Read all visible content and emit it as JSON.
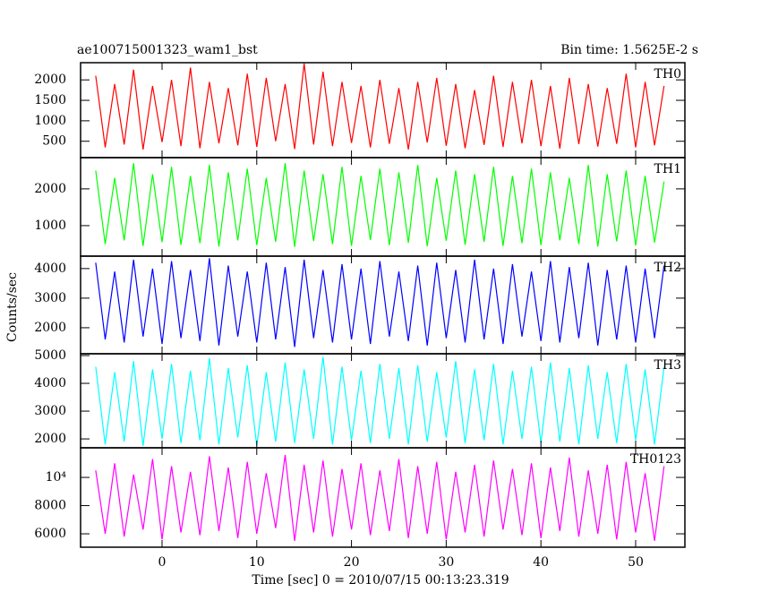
{
  "title": "ae100715001323_wam1_bst",
  "bin_time": "Bin time: 1.5625E-2 s",
  "ylabel": "Counts/sec",
  "xlabel": "Time [sec] 0 = 2010/07/15 00:13:23.319",
  "chart_data": [
    {
      "type": "line",
      "label": "TH0",
      "color": "#ff0000",
      "xlim": [
        -8.6,
        55.2
      ],
      "xticks": [
        0,
        10,
        20,
        30,
        40,
        50
      ],
      "ylim": [
        100,
        2420
      ],
      "yticks": [
        500,
        1000,
        1500,
        2000
      ],
      "x": [
        -7,
        -6,
        -5,
        -4,
        -3,
        -2,
        -1,
        0,
        1,
        2,
        3,
        4,
        5,
        6,
        7,
        8,
        9,
        10,
        11,
        12,
        13,
        14,
        15,
        16,
        17,
        18,
        19,
        20,
        21,
        22,
        23,
        24,
        25,
        26,
        27,
        28,
        29,
        30,
        31,
        32,
        33,
        34,
        35,
        36,
        37,
        38,
        39,
        40,
        41,
        42,
        43,
        44,
        45,
        46,
        47,
        48,
        49,
        50,
        51,
        52,
        53
      ],
      "values": [
        2100,
        350,
        1900,
        420,
        2250,
        300,
        1850,
        480,
        2000,
        380,
        2300,
        330,
        1950,
        450,
        1800,
        400,
        2150,
        360,
        2050,
        500,
        1900,
        310,
        2400,
        420,
        2200,
        380,
        1950,
        460,
        1850,
        350,
        2000,
        440,
        1800,
        300,
        1950,
        470,
        2050,
        390,
        1900,
        330,
        1750,
        410,
        2100,
        360,
        1950,
        450,
        2000,
        380,
        1850,
        320,
        2050,
        430,
        1900,
        370,
        1800,
        440,
        2150,
        350,
        1950,
        400,
        1850
      ]
    },
    {
      "type": "line",
      "label": "TH1",
      "color": "#00ff00",
      "xlim": [
        -8.6,
        55.2
      ],
      "xticks": [
        0,
        10,
        20,
        30,
        40,
        50
      ],
      "ylim": [
        170,
        2850
      ],
      "yticks": [
        1000,
        2000
      ],
      "x": [
        -7,
        -6,
        -5,
        -4,
        -3,
        -2,
        -1,
        0,
        1,
        2,
        3,
        4,
        5,
        6,
        7,
        8,
        9,
        10,
        11,
        12,
        13,
        14,
        15,
        16,
        17,
        18,
        19,
        20,
        21,
        22,
        23,
        24,
        25,
        26,
        27,
        28,
        29,
        30,
        31,
        32,
        33,
        34,
        35,
        36,
        37,
        38,
        39,
        40,
        41,
        42,
        43,
        44,
        45,
        46,
        47,
        48,
        49,
        50,
        51,
        52,
        53
      ],
      "values": [
        2500,
        500,
        2300,
        600,
        2700,
        450,
        2400,
        550,
        2600,
        480,
        2350,
        520,
        2650,
        430,
        2450,
        600,
        2550,
        470,
        2300,
        560,
        2700,
        420,
        2500,
        580,
        2400,
        500,
        2600,
        450,
        2350,
        610,
        2550,
        470,
        2450,
        530,
        2650,
        440,
        2300,
        590,
        2500,
        480,
        2400,
        560,
        2600,
        450,
        2350,
        520,
        2550,
        470,
        2450,
        600,
        2300,
        500,
        2650,
        430,
        2400,
        570,
        2500,
        460,
        2350,
        540,
        2200
      ]
    },
    {
      "type": "line",
      "label": "TH2",
      "color": "#0000ff",
      "xlim": [
        -8.6,
        55.2
      ],
      "xticks": [
        0,
        10,
        20,
        30,
        40,
        50
      ],
      "ylim": [
        1120,
        4420
      ],
      "yticks": [
        2000,
        3000,
        4000
      ],
      "x": [
        -7,
        -6,
        -5,
        -4,
        -3,
        -2,
        -1,
        0,
        1,
        2,
        3,
        4,
        5,
        6,
        7,
        8,
        9,
        10,
        11,
        12,
        13,
        14,
        15,
        16,
        17,
        18,
        19,
        20,
        21,
        22,
        23,
        24,
        25,
        26,
        27,
        28,
        29,
        30,
        31,
        32,
        33,
        34,
        35,
        36,
        37,
        38,
        39,
        40,
        41,
        42,
        43,
        44,
        45,
        46,
        47,
        48,
        49,
        50,
        51,
        52,
        53
      ],
      "values": [
        4200,
        1600,
        3900,
        1500,
        4300,
        1700,
        4000,
        1450,
        4250,
        1650,
        3950,
        1550,
        4350,
        1400,
        4100,
        1700,
        3900,
        1500,
        4200,
        1600,
        4050,
        1350,
        4300,
        1650,
        3950,
        1500,
        4150,
        1600,
        4000,
        1450,
        4250,
        1700,
        3900,
        1550,
        4100,
        1400,
        4200,
        1650,
        3950,
        1500,
        4300,
        1600,
        4000,
        1450,
        4150,
        1700,
        3900,
        1550,
        4250,
        1500,
        4050,
        1650,
        4200,
        1400,
        3950,
        1600,
        4100,
        1500,
        4000,
        1650,
        4100
      ]
    },
    {
      "type": "line",
      "label": "TH3",
      "color": "#00ffff",
      "xlim": [
        -8.6,
        55.2
      ],
      "xticks": [
        0,
        10,
        20,
        30,
        40,
        50
      ],
      "ylim": [
        1680,
        5065
      ],
      "yticks": [
        2000,
        3000,
        4000,
        5000
      ],
      "x": [
        -7,
        -6,
        -5,
        -4,
        -3,
        -2,
        -1,
        0,
        1,
        2,
        3,
        4,
        5,
        6,
        7,
        8,
        9,
        10,
        11,
        12,
        13,
        14,
        15,
        16,
        17,
        18,
        19,
        20,
        21,
        22,
        23,
        24,
        25,
        26,
        27,
        28,
        29,
        30,
        31,
        32,
        33,
        34,
        35,
        36,
        37,
        38,
        39,
        40,
        41,
        42,
        43,
        44,
        45,
        46,
        47,
        48,
        49,
        50,
        51,
        52,
        53
      ],
      "values": [
        4600,
        1800,
        4400,
        1900,
        4800,
        1750,
        4500,
        2000,
        4700,
        1850,
        4450,
        1950,
        4900,
        1800,
        4550,
        2050,
        4650,
        1750,
        4400,
        1900,
        4750,
        1850,
        4500,
        2000,
        4950,
        1800,
        4600,
        1950,
        4450,
        1850,
        4700,
        2000,
        4550,
        1800,
        4650,
        1900,
        4400,
        2050,
        4800,
        1850,
        4500,
        1950,
        4700,
        1800,
        4450,
        2000,
        4600,
        1850,
        4750,
        1900,
        4550,
        1800,
        4650,
        2000,
        4400,
        1850,
        4700,
        1950,
        4500,
        1800,
        4600
      ]
    },
    {
      "type": "line",
      "label": "TH0123",
      "color": "#ff00ff",
      "xlim": [
        -8.6,
        55.2
      ],
      "xticks": [
        0,
        10,
        20,
        30,
        40,
        50
      ],
      "ylim": [
        5050,
        12100
      ],
      "yticks": [
        6000,
        8000,
        {
          "value": 10000,
          "label": "10⁴"
        }
      ],
      "x": [
        -7,
        -6,
        -5,
        -4,
        -3,
        -2,
        -1,
        0,
        1,
        2,
        3,
        4,
        5,
        6,
        7,
        8,
        9,
        10,
        11,
        12,
        13,
        14,
        15,
        16,
        17,
        18,
        19,
        20,
        21,
        22,
        23,
        24,
        25,
        26,
        27,
        28,
        29,
        30,
        31,
        32,
        33,
        34,
        35,
        36,
        37,
        38,
        39,
        40,
        41,
        42,
        43,
        44,
        45,
        46,
        47,
        48,
        49,
        50,
        51,
        52,
        53
      ],
      "values": [
        10500,
        6000,
        11000,
        5800,
        10200,
        6300,
        11300,
        5600,
        10800,
        6100,
        10400,
        5900,
        11500,
        6200,
        10700,
        5700,
        11100,
        6000,
        10300,
        6400,
        11600,
        5500,
        10900,
        6100,
        11200,
        5800,
        10600,
        6300,
        11000,
        5900,
        10500,
        6200,
        11300,
        5700,
        10800,
        6000,
        11100,
        5600,
        10400,
        6100,
        10900,
        5800,
        11200,
        6300,
        10600,
        5900,
        11000,
        5700,
        10700,
        6200,
        11400,
        5800,
        10500,
        6000,
        10900,
        5600,
        11100,
        6100,
        10300,
        5500,
        10800
      ]
    }
  ]
}
